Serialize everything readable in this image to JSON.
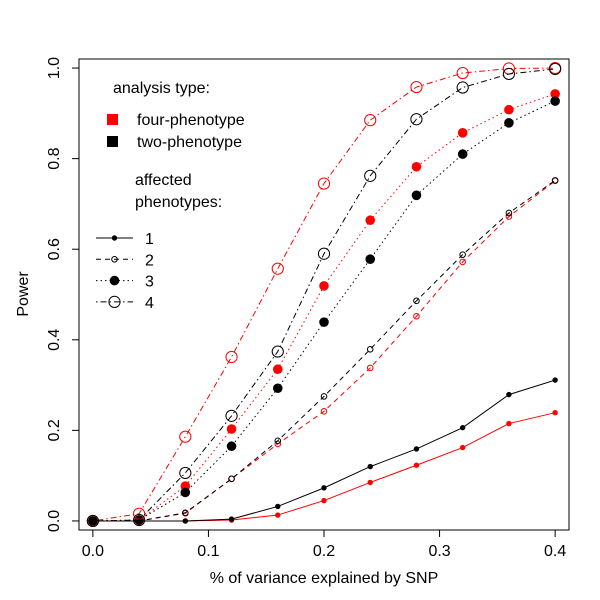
{
  "chart_data": {
    "type": "line",
    "title": "",
    "xlabel": "% of variance explained by SNP",
    "ylabel": "Power",
    "xlim": [
      -0.012,
      0.412
    ],
    "ylim": [
      -0.02,
      1.02
    ],
    "x_ticks": [
      0.0,
      0.1,
      0.2,
      0.3,
      0.4
    ],
    "x_tick_labels": [
      "0.0",
      "0.1",
      "0.2",
      "0.3",
      "0.4"
    ],
    "y_ticks": [
      0.0,
      0.2,
      0.4,
      0.6,
      0.8,
      1.0
    ],
    "y_tick_labels": [
      "0.0",
      "0.2",
      "0.4",
      "0.6",
      "0.8",
      "1.0"
    ],
    "grid": false,
    "x": [
      0.0,
      0.04,
      0.08,
      0.12,
      0.16,
      0.2,
      0.24,
      0.28,
      0.32,
      0.36,
      0.4
    ],
    "colors": {
      "four-phenotype": "#ff0000",
      "two-phenotype": "#000000"
    },
    "series": [
      {
        "name": "four-phenotype, 1 affected",
        "analysis": "four-phenotype",
        "affected": 1,
        "values": [
          0.0,
          0.0,
          0.0,
          0.002,
          0.013,
          0.045,
          0.085,
          0.123,
          0.162,
          0.215,
          0.239
        ]
      },
      {
        "name": "two-phenotype, 1 affected",
        "analysis": "two-phenotype",
        "affected": 1,
        "values": [
          0.0,
          0.0,
          0.0,
          0.004,
          0.032,
          0.073,
          0.12,
          0.159,
          0.206,
          0.279,
          0.311
        ]
      },
      {
        "name": "four-phenotype, 2 affected",
        "analysis": "four-phenotype",
        "affected": 2,
        "values": [
          0.0,
          0.0,
          0.017,
          0.093,
          0.17,
          0.242,
          0.338,
          0.452,
          0.572,
          0.672,
          0.751
        ]
      },
      {
        "name": "two-phenotype, 2 affected",
        "analysis": "two-phenotype",
        "affected": 2,
        "values": [
          0.0,
          0.0,
          0.018,
          0.093,
          0.177,
          0.275,
          0.379,
          0.486,
          0.588,
          0.68,
          0.752
        ]
      },
      {
        "name": "four-phenotype, 3 affected",
        "analysis": "four-phenotype",
        "affected": 3,
        "values": [
          0.0,
          0.002,
          0.077,
          0.203,
          0.335,
          0.519,
          0.664,
          0.782,
          0.857,
          0.908,
          0.943
        ]
      },
      {
        "name": "two-phenotype, 3 affected",
        "analysis": "two-phenotype",
        "affected": 3,
        "values": [
          0.0,
          0.002,
          0.063,
          0.165,
          0.293,
          0.439,
          0.578,
          0.719,
          0.81,
          0.879,
          0.927
        ]
      },
      {
        "name": "four-phenotype, 4 affected",
        "analysis": "four-phenotype",
        "affected": 4,
        "values": [
          0.0,
          0.016,
          0.186,
          0.362,
          0.557,
          0.745,
          0.885,
          0.958,
          0.989,
          0.999,
          1.0
        ]
      },
      {
        "name": "two-phenotype, 4 affected",
        "analysis": "two-phenotype",
        "affected": 4,
        "values": [
          0.0,
          0.002,
          0.106,
          0.232,
          0.374,
          0.59,
          0.762,
          0.887,
          0.957,
          0.987,
          0.998
        ]
      }
    ],
    "legend": {
      "position": "top-left",
      "analysis_title": "analysis type:",
      "analysis_items": [
        {
          "label": "four-phenotype",
          "color": "#ff0000"
        },
        {
          "label": "two-phenotype",
          "color": "#000000"
        }
      ],
      "affected_title_line1": "affected",
      "affected_title_line2": "phenotypes:",
      "affected_items": [
        {
          "label": "1",
          "style": "solid",
          "marker": "small-filled"
        },
        {
          "label": "2",
          "style": "dashed",
          "marker": "small-open"
        },
        {
          "label": "3",
          "style": "dotted",
          "marker": "large-filled"
        },
        {
          "label": "4",
          "style": "dotdash",
          "marker": "large-open"
        }
      ]
    }
  }
}
